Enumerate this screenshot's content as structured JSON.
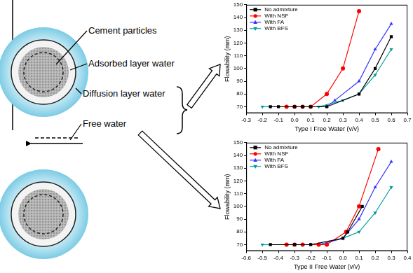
{
  "diagram": {
    "labels": [
      "Cement particles",
      "Adsorbed layer water",
      "Diffusion layer water",
      "Free water"
    ]
  },
  "chart_data": [
    {
      "type": "line",
      "x_label": "Type I Free Water (v/v)",
      "y_label": "Flowability (mm)",
      "xlim": [
        -0.3,
        0.7
      ],
      "xticks": [
        -0.3,
        -0.2,
        -0.1,
        {
          "value": 0,
          "label": "0.0"
        },
        0.1,
        0.2,
        0.3,
        0.4,
        0.5,
        0.6,
        0.7
      ],
      "ylim": [
        65,
        150
      ],
      "yticks": [
        70,
        80,
        90,
        100,
        110,
        120,
        130,
        140,
        150
      ],
      "grid": false,
      "legend": "upper left",
      "series": [
        {
          "name": "No admixture",
          "color": "#000000",
          "marker": "square",
          "x": [
            -0.15,
            -0.1,
            0,
            0.05,
            0.1,
            0.2,
            0.4,
            0.5,
            0.6
          ],
          "values": [
            70,
            70,
            70,
            70,
            70,
            70,
            80,
            100,
            125
          ]
        },
        {
          "name": "With NSF",
          "color": "#ff0000",
          "marker": "circle",
          "x": [
            -0.05,
            0,
            0.05,
            0.1,
            0.2,
            0.3,
            0.4
          ],
          "values": [
            70,
            70,
            70,
            70,
            80,
            100,
            145
          ]
        },
        {
          "name": "With FA",
          "color": "#3333ff",
          "marker": "triangle",
          "x": [
            0,
            0.1,
            0.2,
            0.25,
            0.4,
            0.5,
            0.6
          ],
          "values": [
            70,
            70,
            70,
            75,
            90,
            115,
            135
          ]
        },
        {
          "name": "With BFS",
          "color": "#009c9c",
          "marker": "triangle_down",
          "x": [
            -0.2,
            -0.15,
            -0.05,
            0.05,
            0.15,
            0.3,
            0.4,
            0.5,
            0.6
          ],
          "values": [
            70,
            70,
            70,
            70,
            70,
            75,
            80,
            95,
            115
          ]
        }
      ]
    },
    {
      "type": "line",
      "x_label": "Type II Free Water (v/v)",
      "y_label": "Flowability (mm)",
      "xlim": [
        -0.6,
        0.4
      ],
      "xticks": [
        -0.6,
        -0.5,
        -0.4,
        -0.3,
        -0.2,
        -0.1,
        {
          "value": 0,
          "label": "0.0"
        },
        0.1,
        0.2,
        0.3,
        0.4
      ],
      "ylim": [
        65,
        150
      ],
      "yticks": [
        70,
        80,
        90,
        100,
        110,
        120,
        130,
        140,
        150
      ],
      "grid": false,
      "legend": "upper left",
      "series": [
        {
          "name": "No admixture",
          "color": "#000000",
          "marker": "square",
          "x": [
            -0.45,
            -0.3,
            -0.2,
            0,
            0.03,
            0.12
          ],
          "values": [
            70,
            70,
            70,
            75,
            80,
            100
          ]
        },
        {
          "name": "With NSF",
          "color": "#ff0000",
          "marker": "circle",
          "x": [
            -0.35,
            -0.3,
            -0.25,
            -0.15,
            -0.1,
            0.02,
            0.1,
            0.22
          ],
          "values": [
            70,
            70,
            70,
            70,
            70,
            80,
            100,
            145
          ]
        },
        {
          "name": "With FA",
          "color": "#3333ff",
          "marker": "triangle",
          "x": [
            -0.2,
            -0.15,
            0,
            0.1,
            0.2,
            0.3
          ],
          "values": [
            70,
            70,
            75,
            90,
            115,
            135
          ]
        },
        {
          "name": "With BFS",
          "color": "#009c9c",
          "marker": "triangle_down",
          "x": [
            -0.5,
            -0.35,
            -0.15,
            0,
            0.1,
            0.2,
            0.3
          ],
          "values": [
            70,
            70,
            70,
            75,
            80,
            95,
            115
          ]
        }
      ]
    }
  ]
}
